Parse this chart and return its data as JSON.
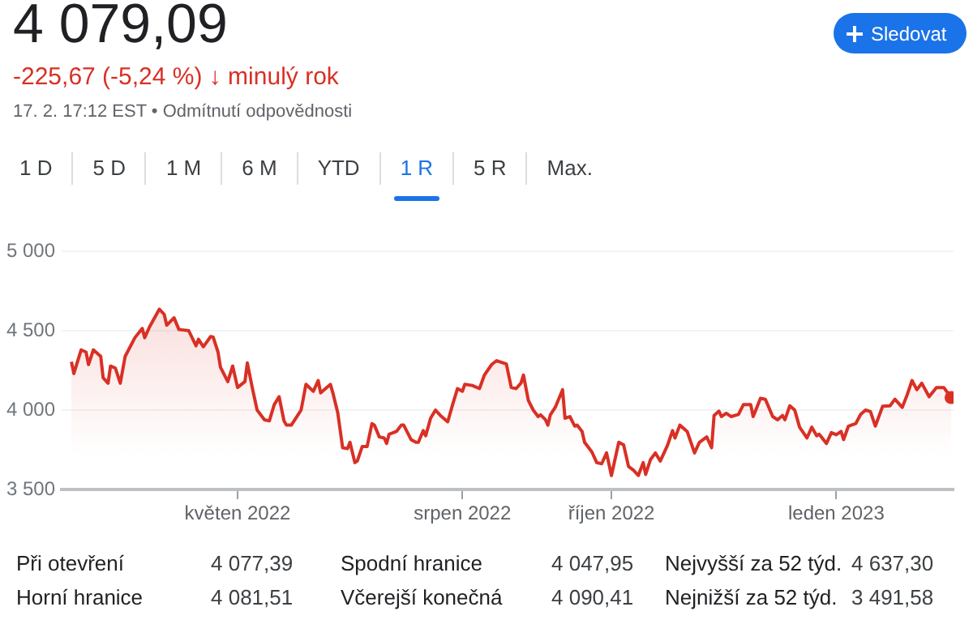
{
  "chart_data": {
    "type": "area",
    "title": "4 079,09",
    "subtitle": "-225,67 (-5,24 %) ↓ minulý rok",
    "annotations": [
      "17. 2. 17:12 EST • Odmítnutí odpovědnosti",
      "Sledovat",
      "1 D",
      "5 D",
      "1 M",
      "6 M",
      "YTD",
      "1 R",
      "5 R",
      "Max.",
      "Při otevření",
      "4 077,39",
      "Spodní hranice",
      "4 047,95",
      "Nejvyšší za 52 týd.",
      "4 637,30",
      "Horní hranice",
      "4 081,51",
      "Včerejší konečná",
      "4 090,41",
      "Nejnižší za 52 týd.",
      "3 491,58"
    ],
    "x": [
      "2022-02-22",
      "2022-02-23",
      "2022-02-26",
      "2022-02-28",
      "2022-03-01",
      "2022-03-03",
      "2022-03-06",
      "2022-03-07",
      "2022-03-09",
      "2022-03-10",
      "2022-03-12",
      "2022-03-14",
      "2022-03-16",
      "2022-03-20",
      "2022-03-23",
      "2022-03-24",
      "2022-03-26",
      "2022-03-30",
      "2022-04-01",
      "2022-04-02",
      "2022-04-05",
      "2022-04-07",
      "2022-04-11",
      "2022-04-14",
      "2022-04-15",
      "2022-04-17",
      "2022-04-20",
      "2022-04-21",
      "2022-04-23",
      "2022-04-24",
      "2022-04-27",
      "2022-04-29",
      "2022-05-01",
      "2022-05-04",
      "2022-05-05",
      "2022-05-07",
      "2022-05-09",
      "2022-05-12",
      "2022-05-14",
      "2022-05-16",
      "2022-05-18",
      "2022-05-20",
      "2022-05-21",
      "2022-05-23",
      "2022-05-27",
      "2022-05-29",
      "2022-06-01",
      "2022-06-03",
      "2022-06-04",
      "2022-06-08",
      "2022-06-09",
      "2022-06-11",
      "2022-06-13",
      "2022-06-15",
      "2022-06-16",
      "2022-06-18",
      "2022-06-19",
      "2022-06-21",
      "2022-06-23",
      "2022-06-25",
      "2022-06-26",
      "2022-06-28",
      "2022-06-30",
      "2022-07-01",
      "2022-07-02",
      "2022-07-05",
      "2022-07-07",
      "2022-07-08",
      "2022-07-11",
      "2022-07-13",
      "2022-07-14",
      "2022-07-16",
      "2022-07-17",
      "2022-07-19",
      "2022-07-21",
      "2022-07-23",
      "2022-07-26",
      "2022-07-28",
      "2022-07-30",
      "2022-08-01",
      "2022-08-02",
      "2022-08-05",
      "2022-08-08",
      "2022-08-10",
      "2022-08-13",
      "2022-08-15",
      "2022-08-19",
      "2022-08-21",
      "2022-08-23",
      "2022-08-25",
      "2022-08-26",
      "2022-08-28",
      "2022-08-30",
      "2022-09-01",
      "2022-09-02",
      "2022-09-04",
      "2022-09-05",
      "2022-09-06",
      "2022-09-08",
      "2022-09-11",
      "2022-09-12",
      "2022-09-14",
      "2022-09-16",
      "2022-09-17",
      "2022-09-19",
      "2022-09-20",
      "2022-09-23",
      "2022-09-25",
      "2022-09-27",
      "2022-09-29",
      "2022-10-01",
      "2022-10-04",
      "2022-10-06",
      "2022-10-08",
      "2022-10-10",
      "2022-10-12",
      "2022-10-14",
      "2022-10-15",
      "2022-10-17",
      "2022-10-19",
      "2022-10-21",
      "2022-10-24",
      "2022-10-26",
      "2022-10-27",
      "2022-10-29",
      "2022-11-01",
      "2022-11-04",
      "2022-11-06",
      "2022-11-09",
      "2022-11-11",
      "2022-11-12",
      "2022-11-14",
      "2022-11-15",
      "2022-11-17",
      "2022-11-19",
      "2022-11-22",
      "2022-11-24",
      "2022-11-27",
      "2022-11-28",
      "2022-12-01",
      "2022-12-03",
      "2022-12-06",
      "2022-12-08",
      "2022-12-10",
      "2022-12-11",
      "2022-12-13",
      "2022-12-15",
      "2022-12-17",
      "2022-12-20",
      "2022-12-22",
      "2022-12-24",
      "2022-12-25",
      "2022-12-28",
      "2022-12-30",
      "2023-01-01",
      "2023-01-03",
      "2023-01-04",
      "2023-01-06",
      "2023-01-09",
      "2023-01-11",
      "2023-01-13",
      "2023-01-15",
      "2023-01-17",
      "2023-01-19",
      "2023-01-20",
      "2023-01-23",
      "2023-01-25",
      "2023-01-28",
      "2023-01-30",
      "2023-02-01",
      "2023-02-03",
      "2023-02-05",
      "2023-02-08",
      "2023-02-11",
      "2023-02-14",
      "2023-02-17"
    ],
    "values": [
      4304,
      4230,
      4379,
      4365,
      4287,
      4379,
      4338,
      4203,
      4169,
      4277,
      4264,
      4169,
      4338,
      4456,
      4514,
      4456,
      4524,
      4635,
      4602,
      4534,
      4581,
      4507,
      4500,
      4405,
      4446,
      4399,
      4463,
      4460,
      4365,
      4270,
      4179,
      4277,
      4142,
      4179,
      4297,
      4142,
      4000,
      3939,
      3932,
      4034,
      4084,
      3932,
      3905,
      3905,
      4000,
      4162,
      4118,
      4186,
      4108,
      4162,
      4108,
      3983,
      3763,
      3757,
      3797,
      3669,
      3679,
      3770,
      3770,
      3915,
      3905,
      3831,
      3824,
      3790,
      3848,
      3865,
      3905,
      3905,
      3814,
      3797,
      3797,
      3871,
      3838,
      3949,
      4000,
      3966,
      3926,
      4034,
      4135,
      4118,
      4162,
      4155,
      4135,
      4220,
      4287,
      4311,
      4290,
      4142,
      4135,
      4170,
      4220,
      4061,
      4000,
      3959,
      3970,
      3939,
      3905,
      3970,
      4017,
      4128,
      3949,
      3959,
      3899,
      3905,
      3865,
      3797,
      3736,
      3669,
      3662,
      3730,
      3588,
      3797,
      3780,
      3645,
      3622,
      3588,
      3669,
      3595,
      3689,
      3730,
      3679,
      3780,
      3871,
      3824,
      3905,
      3865,
      3730,
      3797,
      3831,
      3763,
      3966,
      3993,
      3959,
      3980,
      3959,
      3973,
      4034,
      4034,
      3959,
      4074,
      4068,
      3959,
      3939,
      3966,
      3939,
      4027,
      4000,
      3892,
      3824,
      3892,
      3838,
      3848,
      3790,
      3858,
      3845,
      3865,
      3814,
      3899,
      3915,
      3973,
      4000,
      3990,
      3899,
      3983,
      4024,
      4027,
      4068,
      4017,
      4095,
      4186,
      4128,
      4169,
      4084,
      4142,
      4142,
      4079.09
    ],
    "color": "#d93025",
    "xlim": [
      "2022-02-18",
      "2023-02-18"
    ],
    "xticks": [
      {
        "value": "2022-05-01",
        "label": "květen 2022"
      },
      {
        "value": "2022-08-01",
        "label": "srpen 2022"
      },
      {
        "value": "2022-10-01",
        "label": "říjen 2022"
      },
      {
        "value": "2023-01-01",
        "label": "leden 2023"
      }
    ],
    "ylim": [
      3500,
      5000
    ],
    "yticks": [
      {
        "value": 3500,
        "label": "3 500"
      },
      {
        "value": 4000,
        "label": "4 000"
      },
      {
        "value": 4500,
        "label": "4 500"
      },
      {
        "value": 5000,
        "label": "5 000"
      }
    ],
    "grid": "y",
    "legend": false,
    "marker": "none",
    "line_style": "solid"
  }
}
